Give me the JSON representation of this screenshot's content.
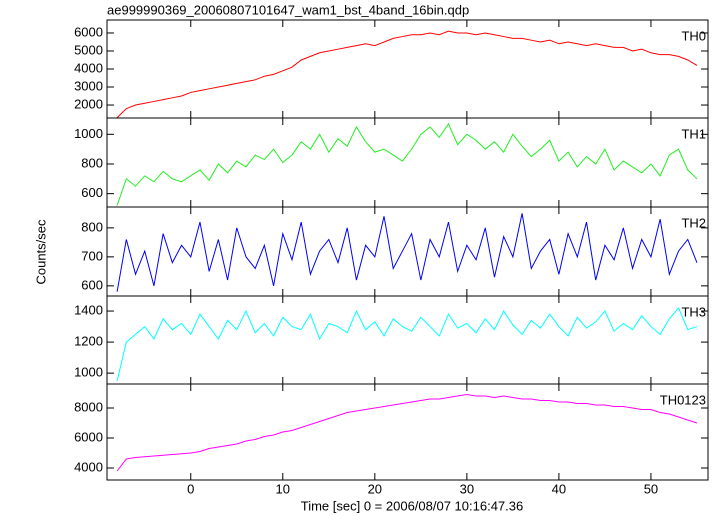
{
  "chart_data": [
    {
      "type": "line",
      "title": "ae999990369_20060807101647_wam1_bst_4band_16bin.qdp",
      "label": "TH0",
      "color": "#ff0000",
      "x": [
        -8,
        -7,
        -6,
        -5,
        -4,
        -3,
        -2,
        -1,
        0,
        1,
        2,
        3,
        4,
        5,
        6,
        7,
        8,
        9,
        10,
        11,
        12,
        13,
        14,
        15,
        16,
        17,
        18,
        19,
        20,
        21,
        22,
        23,
        24,
        25,
        26,
        27,
        28,
        29,
        30,
        31,
        32,
        33,
        34,
        35,
        36,
        37,
        38,
        39,
        40,
        41,
        42,
        43,
        44,
        45,
        46,
        47,
        48,
        49,
        50,
        51,
        52,
        53,
        54,
        55
      ],
      "values": [
        1300,
        1800,
        2000,
        2100,
        2200,
        2300,
        2400,
        2500,
        2700,
        2800,
        2900,
        3000,
        3100,
        3200,
        3300,
        3400,
        3600,
        3700,
        3900,
        4100,
        4500,
        4700,
        4900,
        5000,
        5100,
        5200,
        5300,
        5400,
        5300,
        5500,
        5700,
        5800,
        5900,
        5900,
        6000,
        5900,
        6100,
        6000,
        6000,
        5900,
        6000,
        5900,
        5800,
        5700,
        5700,
        5600,
        5500,
        5600,
        5400,
        5500,
        5400,
        5300,
        5400,
        5300,
        5200,
        5200,
        5000,
        5100,
        4900,
        4800,
        4800,
        4700,
        4500,
        4200
      ],
      "xlim": [
        -9.1,
        56.2
      ],
      "ylim": [
        1280,
        6720
      ],
      "yticks": [
        2000,
        3000,
        4000,
        5000,
        6000
      ]
    },
    {
      "type": "line",
      "label": "TH1",
      "color": "#22ee22",
      "x": [
        -8,
        -7,
        -6,
        -5,
        -4,
        -3,
        -2,
        -1,
        0,
        1,
        2,
        3,
        4,
        5,
        6,
        7,
        8,
        9,
        10,
        11,
        12,
        13,
        14,
        15,
        16,
        17,
        18,
        19,
        20,
        21,
        22,
        23,
        24,
        25,
        26,
        27,
        28,
        29,
        30,
        31,
        32,
        33,
        34,
        35,
        36,
        37,
        38,
        39,
        40,
        41,
        42,
        43,
        44,
        45,
        46,
        47,
        48,
        49,
        50,
        51,
        52,
        53,
        54,
        55
      ],
      "values": [
        520,
        700,
        650,
        720,
        680,
        750,
        700,
        680,
        720,
        760,
        690,
        800,
        740,
        820,
        780,
        860,
        830,
        900,
        810,
        860,
        950,
        900,
        1000,
        880,
        970,
        920,
        1050,
        950,
        880,
        900,
        860,
        820,
        900,
        1000,
        1050,
        980,
        1070,
        930,
        1000,
        960,
        900,
        950,
        880,
        1000,
        920,
        850,
        900,
        960,
        820,
        880,
        780,
        850,
        800,
        900,
        760,
        820,
        780,
        740,
        800,
        720,
        860,
        900,
        760,
        700
      ],
      "xlim": [
        -9.1,
        56.2
      ],
      "ylim": [
        510,
        1110
      ],
      "yticks": [
        600,
        800,
        1000
      ]
    },
    {
      "type": "line",
      "label": "TH2",
      "color": "#0000ff",
      "ylabel": "Counts/sec",
      "x": [
        -8,
        -7,
        -6,
        -5,
        -4,
        -3,
        -2,
        -1,
        0,
        1,
        2,
        3,
        4,
        5,
        6,
        7,
        8,
        9,
        10,
        11,
        12,
        13,
        14,
        15,
        16,
        17,
        18,
        19,
        20,
        21,
        22,
        23,
        24,
        25,
        26,
        27,
        28,
        29,
        30,
        31,
        32,
        33,
        34,
        35,
        36,
        37,
        38,
        39,
        40,
        41,
        42,
        43,
        44,
        45,
        46,
        47,
        48,
        49,
        50,
        51,
        52,
        53,
        54,
        55
      ],
      "values": [
        580,
        760,
        640,
        720,
        600,
        780,
        680,
        740,
        700,
        820,
        650,
        760,
        620,
        800,
        700,
        660,
        740,
        600,
        780,
        690,
        820,
        640,
        720,
        760,
        680,
        800,
        620,
        740,
        700,
        840,
        660,
        720,
        780,
        620,
        760,
        700,
        820,
        650,
        740,
        690,
        800,
        630,
        770,
        700,
        850,
        660,
        720,
        760,
        640,
        780,
        700,
        820,
        620,
        740,
        690,
        800,
        660,
        760,
        700,
        830,
        640,
        720,
        760,
        680
      ],
      "xlim": [
        -9.1,
        56.2
      ],
      "ylim": [
        565,
        872
      ],
      "yticks": [
        600,
        700,
        800
      ]
    },
    {
      "type": "line",
      "label": "TH3",
      "color": "#00ffff",
      "x": [
        -8,
        -7,
        -6,
        -5,
        -4,
        -3,
        -2,
        -1,
        0,
        1,
        2,
        3,
        4,
        5,
        6,
        7,
        8,
        9,
        10,
        11,
        12,
        13,
        14,
        15,
        16,
        17,
        18,
        19,
        20,
        21,
        22,
        23,
        24,
        25,
        26,
        27,
        28,
        29,
        30,
        31,
        32,
        33,
        34,
        35,
        36,
        37,
        38,
        39,
        40,
        41,
        42,
        43,
        44,
        45,
        46,
        47,
        48,
        49,
        50,
        51,
        52,
        53,
        54,
        55
      ],
      "values": [
        950,
        1200,
        1250,
        1300,
        1220,
        1350,
        1280,
        1320,
        1250,
        1380,
        1300,
        1220,
        1340,
        1280,
        1400,
        1260,
        1320,
        1240,
        1360,
        1300,
        1280,
        1380,
        1220,
        1320,
        1300,
        1260,
        1400,
        1280,
        1330,
        1240,
        1350,
        1300,
        1270,
        1360,
        1300,
        1240,
        1380,
        1290,
        1320,
        1260,
        1350,
        1280,
        1400,
        1310,
        1250,
        1340,
        1290,
        1380,
        1300,
        1240,
        1360,
        1290,
        1330,
        1400,
        1270,
        1320,
        1280,
        1370,
        1300,
        1250,
        1350,
        1420,
        1280,
        1300
      ],
      "xlim": [
        -9.1,
        56.2
      ],
      "ylim": [
        930,
        1497
      ],
      "yticks": [
        1000,
        1200,
        1400
      ]
    },
    {
      "type": "line",
      "label": "TH0123",
      "color": "#ff00ff",
      "xlabel": "Time [sec] 0 = 2006/08/07 10:16:47.36",
      "x": [
        -8,
        -7,
        -6,
        -5,
        -4,
        -3,
        -2,
        -1,
        0,
        1,
        2,
        3,
        4,
        5,
        6,
        7,
        8,
        9,
        10,
        11,
        12,
        13,
        14,
        15,
        16,
        17,
        18,
        19,
        20,
        21,
        22,
        23,
        24,
        25,
        26,
        27,
        28,
        29,
        30,
        31,
        32,
        33,
        34,
        35,
        36,
        37,
        38,
        39,
        40,
        41,
        42,
        43,
        44,
        45,
        46,
        47,
        48,
        49,
        50,
        51,
        52,
        53,
        54,
        55
      ],
      "values": [
        3800,
        4600,
        4700,
        4750,
        4800,
        4850,
        4900,
        4950,
        5000,
        5100,
        5300,
        5400,
        5500,
        5600,
        5800,
        5900,
        6100,
        6200,
        6400,
        6500,
        6700,
        6900,
        7100,
        7300,
        7500,
        7700,
        7800,
        7900,
        8000,
        8100,
        8200,
        8300,
        8400,
        8500,
        8600,
        8600,
        8700,
        8800,
        8900,
        8800,
        8800,
        8700,
        8800,
        8700,
        8600,
        8600,
        8500,
        8500,
        8400,
        8400,
        8300,
        8300,
        8200,
        8200,
        8100,
        8100,
        8000,
        7900,
        7900,
        7700,
        7600,
        7400,
        7200,
        7000
      ],
      "xlim": [
        -9.1,
        56.2
      ],
      "ylim": [
        3200,
        9600
      ],
      "yticks": [
        4000,
        6000,
        8000
      ],
      "xticks": [
        0,
        10,
        20,
        30,
        40,
        50
      ]
    }
  ]
}
